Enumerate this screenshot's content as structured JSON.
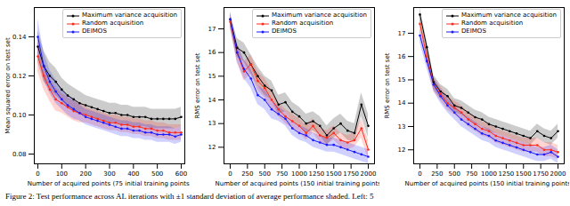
{
  "caption": "Figure 2: Test performance across AL iterations with ±1 standard deviation of average performance shaded. Left: 5",
  "chart_data": [
    {
      "type": "line",
      "x_label": "Number of acquired points (75 initial training points)",
      "y_label": "Mean squared error on test set",
      "x": [
        0,
        25,
        50,
        75,
        100,
        125,
        150,
        175,
        200,
        225,
        250,
        275,
        300,
        325,
        350,
        375,
        400,
        425,
        450,
        475,
        500,
        525,
        550,
        575,
        600
      ],
      "xlim": [
        -15,
        615
      ],
      "xticks": [
        0,
        100,
        200,
        300,
        400,
        500,
        600
      ],
      "ylim": [
        0.075,
        0.155
      ],
      "yticks": [
        {
          "value": 0.08,
          "label": "0.08"
        },
        {
          "value": 0.1,
          "label": "0.10"
        },
        {
          "value": 0.12,
          "label": "0.12"
        },
        {
          "value": 0.14,
          "label": "0.14"
        }
      ],
      "legend": "upper right",
      "grid": false,
      "marker": "o",
      "line_style": "solid",
      "series": [
        {
          "name": "Maximum variance acquisition",
          "color": "#000000",
          "values": [
            0.135,
            0.125,
            0.12,
            0.117,
            0.113,
            0.11,
            0.108,
            0.106,
            0.105,
            0.104,
            0.103,
            0.102,
            0.101,
            0.101,
            0.1,
            0.1,
            0.099,
            0.099,
            0.099,
            0.098,
            0.098,
            0.098,
            0.098,
            0.098,
            0.099
          ],
          "std": [
            0.008,
            0.008,
            0.007,
            0.007,
            0.006,
            0.006,
            0.006,
            0.006,
            0.005,
            0.005,
            0.005,
            0.005,
            0.005,
            0.005,
            0.005,
            0.005,
            0.005,
            0.005,
            0.005,
            0.005,
            0.005,
            0.005,
            0.005,
            0.005,
            0.005
          ]
        },
        {
          "name": "Random acquisition",
          "color": "#ff2a1a",
          "values": [
            0.13,
            0.12,
            0.113,
            0.108,
            0.106,
            0.104,
            0.102,
            0.101,
            0.1,
            0.099,
            0.098,
            0.097,
            0.096,
            0.096,
            0.095,
            0.095,
            0.094,
            0.094,
            0.093,
            0.093,
            0.092,
            0.092,
            0.091,
            0.091,
            0.091
          ],
          "std": [
            0.008,
            0.007,
            0.006,
            0.006,
            0.005,
            0.005,
            0.005,
            0.005,
            0.004,
            0.004,
            0.004,
            0.004,
            0.004,
            0.004,
            0.004,
            0.004,
            0.004,
            0.004,
            0.004,
            0.004,
            0.004,
            0.004,
            0.004,
            0.004,
            0.004
          ]
        },
        {
          "name": "DEIMOS",
          "color": "#1a1aff",
          "values": [
            0.14,
            0.125,
            0.117,
            0.112,
            0.108,
            0.105,
            0.103,
            0.101,
            0.099,
            0.098,
            0.097,
            0.096,
            0.095,
            0.094,
            0.093,
            0.093,
            0.092,
            0.092,
            0.091,
            0.091,
            0.09,
            0.09,
            0.09,
            0.089,
            0.09
          ],
          "std": [
            0.009,
            0.007,
            0.006,
            0.006,
            0.005,
            0.005,
            0.005,
            0.004,
            0.004,
            0.004,
            0.004,
            0.004,
            0.004,
            0.004,
            0.004,
            0.004,
            0.004,
            0.004,
            0.004,
            0.004,
            0.004,
            0.004,
            0.004,
            0.004,
            0.004
          ]
        }
      ]
    },
    {
      "type": "line",
      "x_label": "Number of acquired points (150 initial training points)",
      "y_label": "RMS error on test set",
      "x": [
        0,
        100,
        200,
        300,
        400,
        500,
        600,
        700,
        800,
        900,
        1000,
        1100,
        1200,
        1300,
        1400,
        1500,
        1600,
        1700,
        1800,
        1900,
        2000
      ],
      "xlim": [
        -90,
        2090
      ],
      "xticks": [
        0,
        250,
        500,
        750,
        1000,
        1250,
        1500,
        1750,
        2000
      ],
      "ylim": [
        11.3,
        17.9
      ],
      "yticks": [
        12,
        13,
        14,
        15,
        16,
        17
      ],
      "legend": "upper right",
      "grid": false,
      "marker": "o",
      "line_style": "solid",
      "series": [
        {
          "name": "Maximum variance acquisition",
          "color": "#000000",
          "values": [
            17.4,
            16.2,
            16.0,
            15.5,
            15.0,
            14.6,
            14.4,
            13.8,
            13.9,
            13.5,
            13.3,
            13.0,
            13.1,
            12.9,
            12.5,
            12.8,
            13.0,
            12.7,
            12.6,
            13.8,
            12.9
          ],
          "std": [
            0.3,
            0.4,
            0.4,
            0.4,
            0.4,
            0.4,
            0.4,
            0.4,
            0.4,
            0.4,
            0.4,
            0.4,
            0.4,
            0.4,
            0.4,
            0.4,
            0.4,
            0.4,
            0.4,
            0.5,
            0.5
          ]
        },
        {
          "name": "Random acquisition",
          "color": "#ff2a1a",
          "values": [
            17.3,
            16.0,
            15.2,
            15.5,
            14.8,
            14.5,
            14.0,
            13.6,
            13.3,
            13.1,
            12.9,
            12.6,
            12.9,
            12.5,
            12.4,
            12.6,
            12.3,
            12.2,
            12.3,
            12.8,
            11.9
          ],
          "std": [
            0.3,
            0.4,
            0.4,
            0.4,
            0.4,
            0.4,
            0.4,
            0.3,
            0.3,
            0.3,
            0.3,
            0.3,
            0.3,
            0.3,
            0.3,
            0.3,
            0.3,
            0.3,
            0.3,
            0.4,
            0.4
          ]
        },
        {
          "name": "DEIMOS",
          "color": "#1a1aff",
          "values": [
            17.4,
            16.0,
            15.3,
            14.9,
            14.2,
            14.0,
            13.6,
            13.4,
            13.2,
            12.8,
            12.6,
            12.5,
            12.3,
            12.2,
            12.1,
            12.1,
            12.0,
            11.9,
            11.8,
            11.7,
            11.6
          ],
          "std": [
            0.3,
            0.4,
            0.4,
            0.4,
            0.4,
            0.4,
            0.4,
            0.3,
            0.3,
            0.3,
            0.3,
            0.3,
            0.3,
            0.3,
            0.3,
            0.3,
            0.3,
            0.3,
            0.3,
            0.3,
            0.3
          ]
        }
      ]
    },
    {
      "type": "line",
      "x_label": "Number of acquired points (150 initial training points)",
      "y_label": "RMS error on test set",
      "x": [
        0,
        100,
        200,
        300,
        400,
        500,
        600,
        700,
        800,
        900,
        1000,
        1100,
        1200,
        1300,
        1400,
        1500,
        1600,
        1700,
        1800,
        1900,
        2000
      ],
      "xlim": [
        -90,
        2090
      ],
      "xticks": [
        0,
        250,
        500,
        750,
        1000,
        1250,
        1500,
        1750,
        2000
      ],
      "ylim": [
        11.4,
        18.1
      ],
      "yticks": [
        12,
        13,
        14,
        15,
        16,
        17
      ],
      "legend": "upper right",
      "grid": false,
      "marker": "o",
      "line_style": "solid",
      "series": [
        {
          "name": "Maximum variance acquisition",
          "color": "#000000",
          "values": [
            17.8,
            16.4,
            14.9,
            14.5,
            14.3,
            13.9,
            13.8,
            13.6,
            13.4,
            13.3,
            13.1,
            13.0,
            12.9,
            12.8,
            12.7,
            12.6,
            12.5,
            12.8,
            12.6,
            12.5,
            12.8
          ],
          "std": [
            0.3,
            0.3,
            0.3,
            0.3,
            0.3,
            0.3,
            0.3,
            0.3,
            0.3,
            0.3,
            0.3,
            0.3,
            0.3,
            0.3,
            0.3,
            0.3,
            0.3,
            0.3,
            0.3,
            0.3,
            0.3
          ]
        },
        {
          "name": "Random acquisition",
          "color": "#ff2a1a",
          "values": [
            17.4,
            16.0,
            14.8,
            14.4,
            14.0,
            13.8,
            13.6,
            13.3,
            13.1,
            12.9,
            12.8,
            12.6,
            12.5,
            12.4,
            12.3,
            12.2,
            12.2,
            12.2,
            12.0,
            12.0,
            11.9
          ],
          "std": [
            0.3,
            0.3,
            0.3,
            0.3,
            0.3,
            0.3,
            0.3,
            0.3,
            0.3,
            0.3,
            0.3,
            0.3,
            0.3,
            0.3,
            0.3,
            0.3,
            0.3,
            0.3,
            0.3,
            0.3,
            0.3
          ]
        },
        {
          "name": "DEIMOS",
          "color": "#1a1aff",
          "values": [
            16.9,
            15.8,
            14.8,
            14.3,
            13.9,
            13.6,
            13.3,
            13.1,
            12.9,
            12.7,
            12.6,
            12.4,
            12.3,
            12.2,
            12.1,
            12.0,
            11.9,
            11.8,
            11.8,
            11.9,
            11.7
          ],
          "std": [
            0.3,
            0.3,
            0.3,
            0.3,
            0.3,
            0.3,
            0.3,
            0.3,
            0.3,
            0.3,
            0.3,
            0.3,
            0.3,
            0.3,
            0.3,
            0.3,
            0.3,
            0.3,
            0.3,
            0.3,
            0.3
          ]
        }
      ]
    }
  ]
}
